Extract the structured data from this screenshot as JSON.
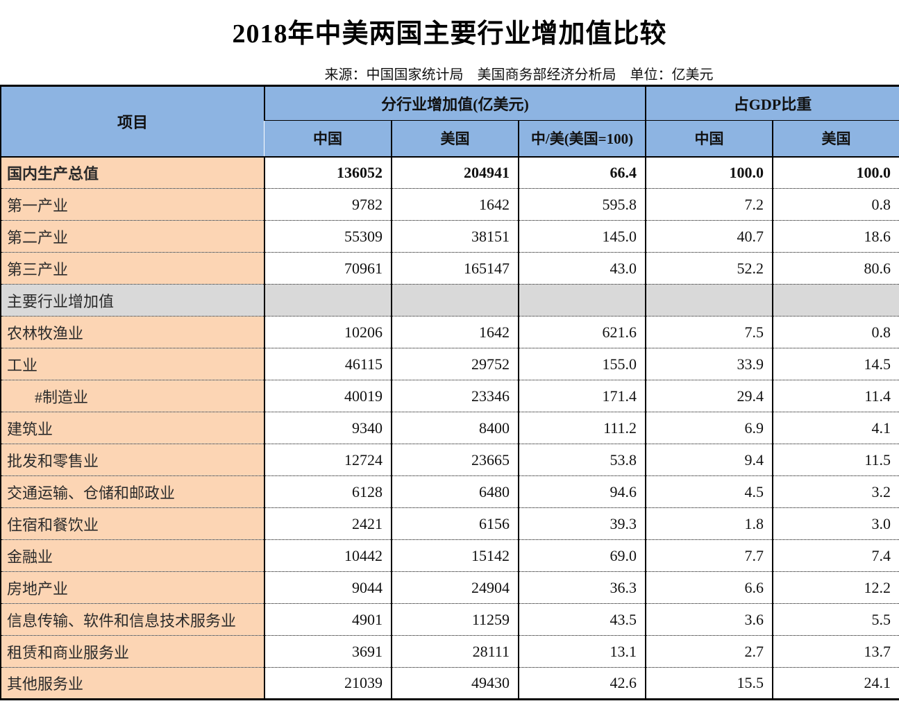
{
  "page": {
    "background": "#FFFFFF"
  },
  "colors": {
    "header_blue": "#8DB4E2",
    "label_peach": "#FCD5B4",
    "section_gray": "#D9D9D9",
    "border_black": "#000000"
  },
  "chart_data": {
    "type": "table",
    "title": "2018年中美两国主要行业增加值比较",
    "source_note": "来源：中国国家统计局　美国商务部经济分析局　单位：亿美元",
    "corner_header": "项目",
    "group_headers": [
      {
        "label": "分行业增加值(亿美元)",
        "colspan": 3
      },
      {
        "label": "占GDP比重",
        "colspan": 2
      }
    ],
    "sub_headers": [
      "中国",
      "美国",
      "中/美(美国=100)",
      "中国",
      "美国"
    ],
    "rows": [
      {
        "label": "国内生产总值",
        "style": "bold",
        "values": [
          "136052",
          "204941",
          "66.4",
          "100.0",
          "100.0"
        ]
      },
      {
        "label": "第一产业",
        "style": "normal",
        "values": [
          "9782",
          "1642",
          "595.8",
          "7.2",
          "0.8"
        ]
      },
      {
        "label": "第二产业",
        "style": "normal",
        "values": [
          "55309",
          "38151",
          "145.0",
          "40.7",
          "18.6"
        ]
      },
      {
        "label": "第三产业",
        "style": "normal",
        "values": [
          "70961",
          "165147",
          "43.0",
          "52.2",
          "80.6"
        ]
      },
      {
        "label": "主要行业增加值",
        "style": "section",
        "values": [
          "",
          "",
          "",
          "",
          ""
        ]
      },
      {
        "label": "农林牧渔业",
        "style": "normal",
        "values": [
          "10206",
          "1642",
          "621.6",
          "7.5",
          "0.8"
        ]
      },
      {
        "label": "工业",
        "style": "normal",
        "values": [
          "46115",
          "29752",
          "155.0",
          "33.9",
          "14.5"
        ]
      },
      {
        "label": "#制造业",
        "style": "indent",
        "values": [
          "40019",
          "23346",
          "171.4",
          "29.4",
          "11.4"
        ]
      },
      {
        "label": "建筑业",
        "style": "normal",
        "values": [
          "9340",
          "8400",
          "111.2",
          "6.9",
          "4.1"
        ]
      },
      {
        "label": "批发和零售业",
        "style": "normal",
        "values": [
          "12724",
          "23665",
          "53.8",
          "9.4",
          "11.5"
        ]
      },
      {
        "label": "交通运输、仓储和邮政业",
        "style": "normal",
        "values": [
          "6128",
          "6480",
          "94.6",
          "4.5",
          "3.2"
        ]
      },
      {
        "label": "住宿和餐饮业",
        "style": "normal",
        "values": [
          "2421",
          "6156",
          "39.3",
          "1.8",
          "3.0"
        ]
      },
      {
        "label": "金融业",
        "style": "normal",
        "values": [
          "10442",
          "15142",
          "69.0",
          "7.7",
          "7.4"
        ]
      },
      {
        "label": "房地产业",
        "style": "normal",
        "values": [
          "9044",
          "24904",
          "36.3",
          "6.6",
          "12.2"
        ]
      },
      {
        "label": "信息传输、软件和信息技术服务业",
        "style": "normal",
        "values": [
          "4901",
          "11259",
          "43.5",
          "3.6",
          "5.5"
        ]
      },
      {
        "label": "租赁和商业服务业",
        "style": "normal",
        "values": [
          "3691",
          "28111",
          "13.1",
          "2.7",
          "13.7"
        ]
      },
      {
        "label": "其他服务业",
        "style": "normal",
        "values": [
          "21039",
          "49430",
          "42.6",
          "15.5",
          "24.1"
        ]
      }
    ]
  }
}
